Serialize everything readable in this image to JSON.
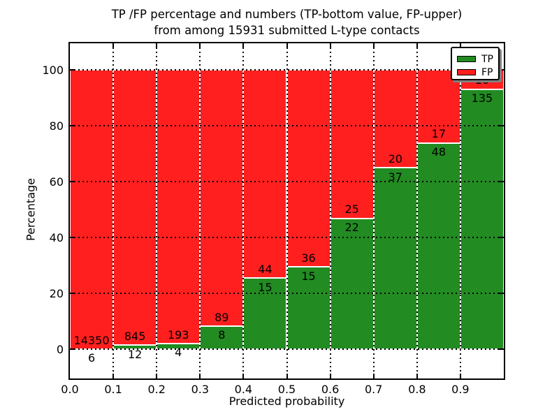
{
  "title": {
    "line1": "TP /FP percentage and numbers (TP-bottom value, FP-upper)",
    "line2": "from among 15931 submitted L-type contacts"
  },
  "axes": {
    "xlabel": "Predicted probability",
    "ylabel": "Percentage",
    "x_tick_labels": [
      "0.0",
      "0.1",
      "0.2",
      "0.3",
      "0.4",
      "0.5",
      "0.6",
      "0.7",
      "0.8",
      "0.9"
    ],
    "x_tick_values": [
      0.0,
      0.1,
      0.2,
      0.3,
      0.4,
      0.5,
      0.6,
      0.7,
      0.8,
      0.9
    ],
    "y_tick_labels": [
      "0",
      "20",
      "40",
      "60",
      "80",
      "100"
    ],
    "y_tick_values": [
      0,
      20,
      40,
      60,
      80,
      100
    ]
  },
  "legend": {
    "position": "upper right",
    "items": [
      {
        "label": "TP",
        "color": "#228b22"
      },
      {
        "label": "FP",
        "color": "#ff1f1f"
      }
    ]
  },
  "chart_data": {
    "type": "bar",
    "stacked": true,
    "normalized_to_percent": true,
    "title": "TP /FP percentage and numbers (TP-bottom value, FP-upper) from among 15931 submitted L-type contacts",
    "xlabel": "Predicted probability",
    "ylabel": "Percentage",
    "xlim": [
      0.0,
      1.0
    ],
    "ylim": [
      -10.5,
      109.5
    ],
    "grid": "dotted, drawn over bars",
    "total_contacts": 15931,
    "bin_edges": [
      0.0,
      0.1,
      0.2,
      0.3,
      0.4,
      0.5,
      0.6,
      0.7,
      0.8,
      0.9,
      1.0
    ],
    "categories": [
      "0.0-0.1",
      "0.1-0.2",
      "0.2-0.3",
      "0.3-0.4",
      "0.4-0.5",
      "0.5-0.6",
      "0.6-0.7",
      "0.7-0.8",
      "0.8-0.9",
      "0.9-1.0"
    ],
    "series": [
      {
        "name": "TP",
        "color": "#228b22",
        "counts": [
          6,
          12,
          4,
          8,
          15,
          15,
          22,
          37,
          48,
          135
        ],
        "percent": [
          0.04,
          1.4,
          2.03,
          8.25,
          25.42,
          29.41,
          46.81,
          64.91,
          73.85,
          93.1
        ]
      },
      {
        "name": "FP",
        "color": "#ff1f1f",
        "counts": [
          14350,
          845,
          193,
          89,
          44,
          36,
          25,
          20,
          17,
          10
        ],
        "percent": [
          99.96,
          98.6,
          97.97,
          91.75,
          74.58,
          70.59,
          53.19,
          35.09,
          26.15,
          6.9
        ]
      }
    ]
  },
  "colors": {
    "tp": "#228b22",
    "fp": "#ff1f1f",
    "background": "#ffffff",
    "grid": "#000000",
    "bar_edge": "#ffffff",
    "spine": "#000000"
  }
}
